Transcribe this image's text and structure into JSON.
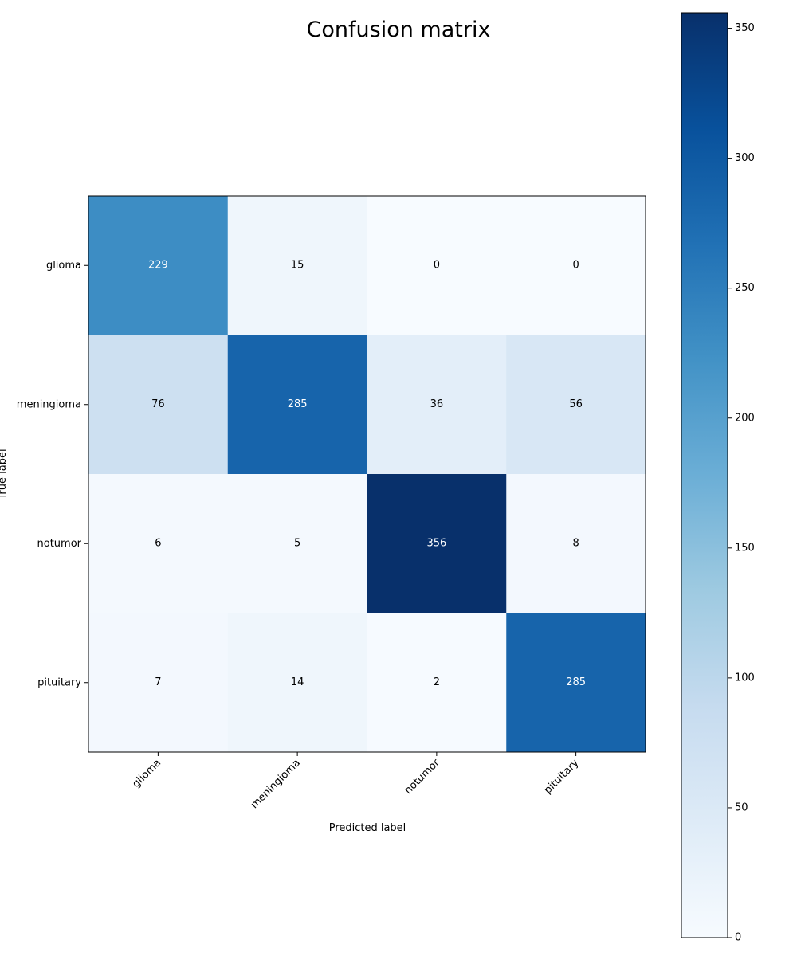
{
  "chart_data": {
    "type": "heatmap",
    "title": "Confusion matrix",
    "xlabel": "Predicted label",
    "ylabel": "True label",
    "x_categories": [
      "glioma",
      "meningioma",
      "notumor",
      "pituitary"
    ],
    "y_categories": [
      "glioma",
      "meningioma",
      "notumor",
      "pituitary"
    ],
    "values": [
      [
        229,
        15,
        0,
        0
      ],
      [
        76,
        285,
        36,
        56
      ],
      [
        6,
        5,
        356,
        8
      ],
      [
        7,
        14,
        2,
        285
      ]
    ],
    "colorscale": "Blues",
    "colorbar": {
      "min": 0,
      "max": 356,
      "ticks": [
        0,
        50,
        100,
        150,
        200,
        250,
        300,
        350
      ]
    },
    "text_threshold": 178,
    "grid": false
  }
}
